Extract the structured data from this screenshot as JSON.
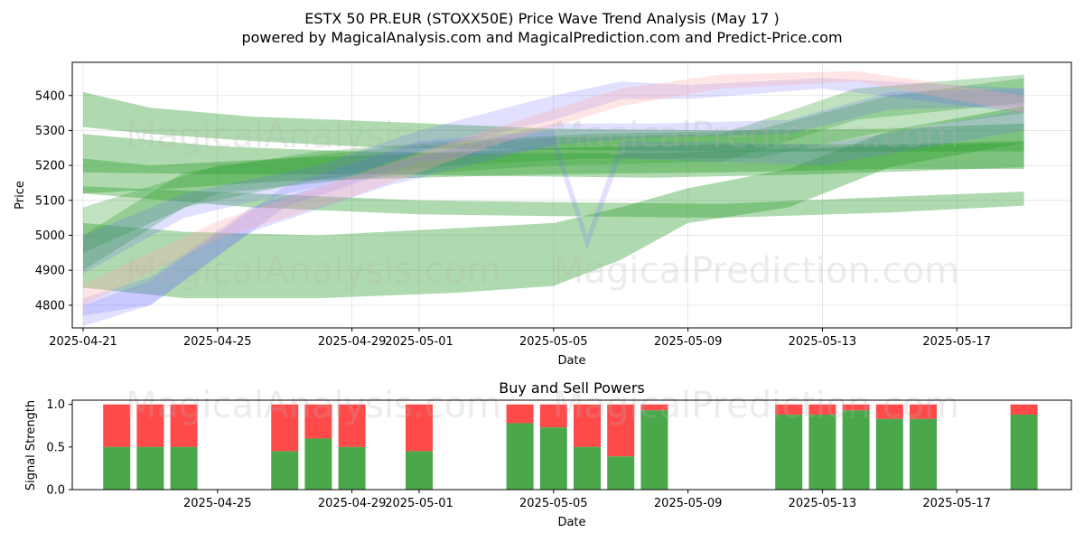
{
  "title": {
    "line1": "ESTX 50 PR.EUR (STOXX50E) Price Wave Trend Analysis (May 17 )",
    "line2": "powered by MagicalAnalysis.com and MagicalPrediction.com and Predict-Price.com"
  },
  "watermarks": [
    "MagicalAnalysis.com",
    "MagicalPrediction.com"
  ],
  "colors": {
    "green_band": "#2e9e2e",
    "blue_band": "#6a6aff",
    "pink_band": "#ffaaaa",
    "buy": "#4aa84a",
    "sell": "#ff4a4a"
  },
  "chart_data": [
    {
      "type": "area",
      "xlabel": "Date",
      "ylabel": "Price",
      "ylim": [
        4735,
        5495
      ],
      "xlim": [
        "2025-04-20",
        "2025-05-20"
      ],
      "grid": true,
      "x_ticks": [
        "2025-04-21",
        "2025-04-25",
        "2025-04-29",
        "2025-05-01",
        "2025-05-05",
        "2025-05-09",
        "2025-05-13",
        "2025-05-17"
      ],
      "y_ticks": [
        4800,
        4900,
        5000,
        5100,
        5200,
        5300,
        5400
      ],
      "series": [
        {
          "color": "green",
          "opacity": 0.38,
          "points": [
            [
              "2025-04-21",
              5310,
              5410
            ],
            [
              "2025-04-23",
              5290,
              5365
            ],
            [
              "2025-04-26",
              5270,
              5340
            ],
            [
              "2025-04-30",
              5250,
              5325
            ],
            [
              "2025-05-05",
              5245,
              5305
            ],
            [
              "2025-05-10",
              5240,
              5300
            ],
            [
              "2025-05-15",
              5240,
              5305
            ],
            [
              "2025-05-19",
              5240,
              5320
            ]
          ]
        },
        {
          "color": "green",
          "opacity": 0.38,
          "points": [
            [
              "2025-04-21",
              5120,
              5220
            ],
            [
              "2025-04-23",
              5130,
              5200
            ],
            [
              "2025-04-27",
              5155,
              5220
            ],
            [
              "2025-05-01",
              5165,
              5235
            ],
            [
              "2025-05-05",
              5175,
              5250
            ],
            [
              "2025-05-10",
              5180,
              5260
            ],
            [
              "2025-05-15",
              5190,
              5260
            ],
            [
              "2025-05-19",
              5190,
              5270
            ]
          ]
        },
        {
          "color": "green",
          "opacity": 0.38,
          "points": [
            [
              "2025-04-21",
              4850,
              5035
            ],
            [
              "2025-04-24",
              4820,
              5010
            ],
            [
              "2025-04-28",
              4820,
              5000
            ],
            [
              "2025-05-02",
              4835,
              5020
            ],
            [
              "2025-05-05",
              4855,
              5035
            ],
            [
              "2025-05-07",
              4930,
              5080
            ],
            [
              "2025-05-09",
              5035,
              5135
            ],
            [
              "2025-05-12",
              5080,
              5190
            ],
            [
              "2025-05-15",
              5195,
              5300
            ],
            [
              "2025-05-19",
              5265,
              5370
            ]
          ]
        },
        {
          "color": "green",
          "opacity": 0.38,
          "points": [
            [
              "2025-04-21",
              5120,
              5140
            ],
            [
              "2025-04-26",
              5080,
              5120
            ],
            [
              "2025-05-01",
              5060,
              5100
            ],
            [
              "2025-05-05",
              5055,
              5095
            ],
            [
              "2025-05-10",
              5050,
              5090
            ],
            [
              "2025-05-15",
              5065,
              5110
            ],
            [
              "2025-05-19",
              5085,
              5125
            ]
          ]
        },
        {
          "color": "green",
          "opacity": 0.38,
          "points": [
            [
              "2025-04-21",
              5180,
              5290
            ],
            [
              "2025-04-25",
              5175,
              5255
            ],
            [
              "2025-04-29",
              5175,
              5240
            ],
            [
              "2025-05-03",
              5170,
              5235
            ],
            [
              "2025-05-08",
              5165,
              5235
            ],
            [
              "2025-05-13",
              5175,
              5250
            ],
            [
              "2025-05-19",
              5195,
              5265
            ]
          ]
        },
        {
          "color": "green",
          "opacity": 0.3,
          "points": [
            [
              "2025-04-21",
              4900,
              5000
            ],
            [
              "2025-04-24",
              5080,
              5180
            ],
            [
              "2025-04-28",
              5160,
              5240
            ],
            [
              "2025-05-02",
              5200,
              5270
            ],
            [
              "2025-05-06",
              5220,
              5290
            ],
            [
              "2025-05-11",
              5220,
              5300
            ],
            [
              "2025-05-15",
              5300,
              5400
            ],
            [
              "2025-05-19",
              5350,
              5450
            ]
          ]
        },
        {
          "color": "green",
          "opacity": 0.3,
          "points": [
            [
              "2025-04-21",
              4950,
              5080
            ],
            [
              "2025-04-25",
              5120,
              5200
            ],
            [
              "2025-04-30",
              5170,
              5250
            ],
            [
              "2025-05-05",
              5200,
              5280
            ],
            [
              "2025-05-10",
              5210,
              5290
            ],
            [
              "2025-05-14",
              5330,
              5420
            ],
            [
              "2025-05-19",
              5380,
              5460
            ]
          ]
        },
        {
          "color": "blue",
          "opacity": 0.2,
          "points": [
            [
              "2025-04-21",
              4890,
              5000
            ],
            [
              "2025-04-24",
              5050,
              5120
            ],
            [
              "2025-04-28",
              5140,
              5200
            ],
            [
              "2025-05-01",
              5240,
              5300
            ],
            [
              "2025-05-05",
              5330,
              5400
            ],
            [
              "2025-05-07",
              5390,
              5440
            ],
            [
              "2025-05-09",
              5390,
              5430
            ],
            [
              "2025-05-13",
              5420,
              5450
            ],
            [
              "2025-05-19",
              5350,
              5420
            ]
          ]
        },
        {
          "color": "blue",
          "opacity": 0.2,
          "points": [
            [
              "2025-04-21",
              4770,
              4820
            ],
            [
              "2025-04-23",
              4800,
              4880
            ],
            [
              "2025-04-26",
              5010,
              5080
            ],
            [
              "2025-04-30",
              5140,
              5200
            ],
            [
              "2025-05-05",
              5260,
              5320
            ],
            [
              "2025-05-08",
              5280,
              5320
            ],
            [
              "2025-05-12",
              5290,
              5330
            ],
            [
              "2025-05-15",
              5360,
              5410
            ],
            [
              "2025-05-19",
              5370,
              5420
            ]
          ]
        },
        {
          "color": "blue",
          "opacity": 0.2,
          "points": [
            [
              "2025-04-21",
              4740,
              4800
            ],
            [
              "2025-04-23",
              4800,
              4870
            ],
            [
              "2025-04-27",
              5080,
              5140
            ],
            [
              "2025-05-01",
              5210,
              5270
            ],
            [
              "2025-05-05",
              5250,
              5300
            ],
            [
              "2025-05-06",
              4960,
              5000
            ],
            [
              "2025-05-07",
              5220,
              5270
            ],
            [
              "2025-05-13",
              5200,
              5260
            ],
            [
              "2025-05-19",
              5300,
              5360
            ]
          ]
        },
        {
          "color": "pink",
          "opacity": 0.3,
          "points": [
            [
              "2025-04-21",
              4800,
              4860
            ],
            [
              "2025-04-25",
              4990,
              5040
            ],
            [
              "2025-04-29",
              5110,
              5170
            ],
            [
              "2025-05-03",
              5250,
              5300
            ],
            [
              "2025-05-07",
              5370,
              5420
            ],
            [
              "2025-05-10",
              5420,
              5460
            ],
            [
              "2025-05-14",
              5440,
              5470
            ],
            [
              "2025-05-19",
              5350,
              5400
            ]
          ]
        }
      ]
    },
    {
      "type": "bar",
      "title": "Buy and Sell Powers",
      "xlabel": "Date",
      "ylabel": "Signal Strength",
      "ylim": [
        0,
        1.05
      ],
      "y_ticks": [
        0.0,
        0.5,
        1.0
      ],
      "x_ticks": [
        "2025-04-25",
        "2025-04-29",
        "2025-05-01",
        "2025-05-05",
        "2025-05-09",
        "2025-05-13",
        "2025-05-17"
      ],
      "grid": false,
      "series": [
        {
          "name": "buy",
          "color": "#4aa84a"
        },
        {
          "name": "sell",
          "color": "#ff4a4a"
        }
      ],
      "categories": [
        "2025-04-22",
        "2025-04-23",
        "2025-04-24",
        "2025-04-27",
        "2025-04-28",
        "2025-04-29",
        "2025-05-01",
        "2025-05-04",
        "2025-05-05",
        "2025-05-06",
        "2025-05-07",
        "2025-05-08",
        "2025-05-12",
        "2025-05-13",
        "2025-05-14",
        "2025-05-15",
        "2025-05-16",
        "2025-05-19"
      ],
      "buy": [
        0.5,
        0.5,
        0.5,
        0.45,
        0.6,
        0.5,
        0.45,
        0.78,
        0.73,
        0.5,
        0.39,
        0.93,
        0.88,
        0.88,
        0.93,
        0.83,
        0.83,
        0.88
      ]
    }
  ]
}
